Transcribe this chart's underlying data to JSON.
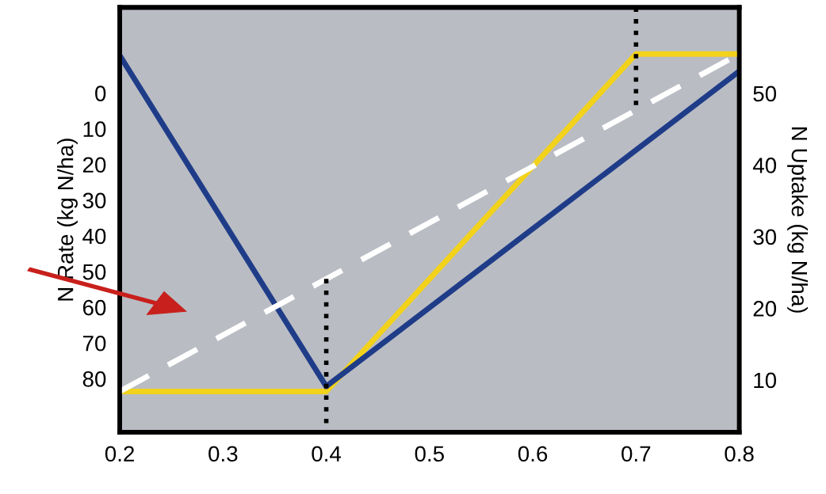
{
  "chart_data": {
    "type": "line",
    "ylabel": "N Rate (kg N/ha)",
    "y2label": "N Uptake (kg N/ha)",
    "xlim": [
      0.2,
      0.8
    ],
    "xticks": [
      0.2,
      0.3,
      0.4,
      0.5,
      0.6,
      0.7,
      0.8
    ],
    "ylim": [
      95,
      -24
    ],
    "yticks": [
      0,
      10,
      20,
      30,
      40,
      50,
      60,
      70,
      80
    ],
    "y2lim": [
      2.7,
      62
    ],
    "y2ticks": [
      10,
      20,
      30,
      40,
      50
    ],
    "grid": false,
    "legend": false,
    "marker": "none",
    "series": [
      {
        "color": "#f2d21a",
        "axis": "y2",
        "line_style": "solid",
        "x": [
          0.2,
          0.4,
          0.7,
          0.8
        ],
        "values": [
          8.4,
          8.4,
          55.5,
          55.5
        ]
      },
      {
        "color": "#1f3c88",
        "axis": "y2",
        "line_style": "solid",
        "x": [
          0.2,
          0.4,
          0.8
        ],
        "values": [
          55.3,
          9.1,
          53.1
        ]
      },
      {
        "color": "#ffffff",
        "axis": "y2",
        "line_style": "dashed",
        "x": [
          0.2,
          0.8
        ],
        "values": [
          8.4,
          55.5
        ]
      },
      {
        "color": "#000000",
        "axis": "y2",
        "line_style": "dotted",
        "x": [
          0.4,
          0.4
        ],
        "values": [
          24.1,
          2.7
        ]
      },
      {
        "color": "#000000",
        "axis": "y2",
        "line_style": "dotted",
        "x": [
          0.7,
          0.7
        ],
        "values": [
          62,
          48.1
        ]
      }
    ]
  }
}
